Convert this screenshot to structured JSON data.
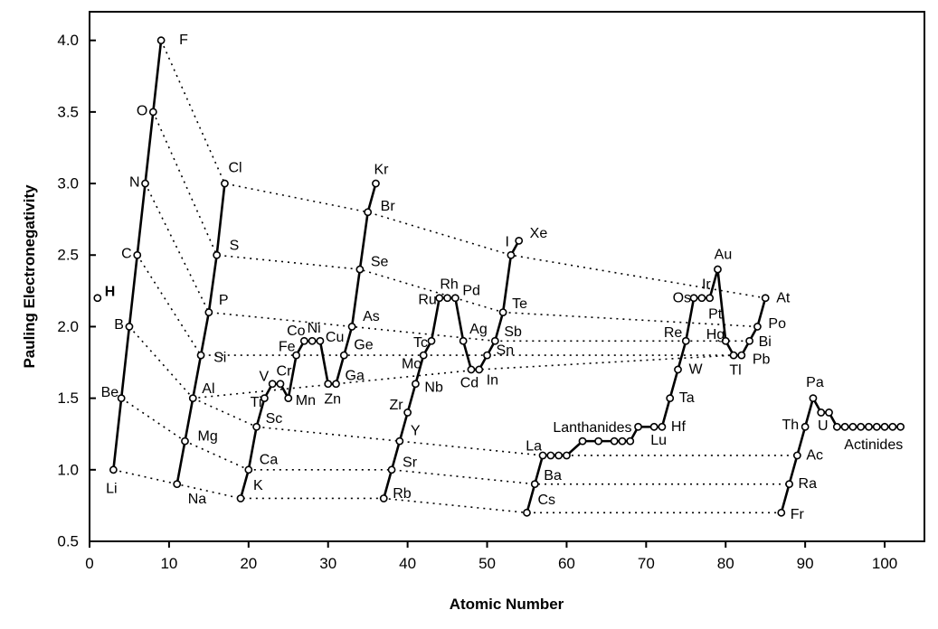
{
  "chart_data": {
    "type": "line",
    "xlabel": "Atomic Number",
    "ylabel": "Pauling Electronegativity",
    "xlim": [
      0,
      105
    ],
    "ylim": [
      0.5,
      4.2
    ],
    "xticks": [
      "0",
      "10",
      "20",
      "30",
      "40",
      "50",
      "60",
      "70",
      "80",
      "90",
      "100"
    ],
    "yticks": [
      "0.5",
      "1.0",
      "1.5",
      "2.0",
      "2.5",
      "3.0",
      "3.5",
      "4.0"
    ],
    "grid": false,
    "annotations": {
      "lanthanides": "Lanthanides",
      "actinides": "Actinides"
    },
    "elements": [
      {
        "z": 1,
        "en": 2.2,
        "symbol": "H",
        "bold": true
      },
      {
        "z": 3,
        "en": 1.0,
        "symbol": "Li"
      },
      {
        "z": 4,
        "en": 1.5,
        "symbol": "Be"
      },
      {
        "z": 5,
        "en": 2.0,
        "symbol": "B"
      },
      {
        "z": 6,
        "en": 2.5,
        "symbol": "C"
      },
      {
        "z": 7,
        "en": 3.0,
        "symbol": "N"
      },
      {
        "z": 8,
        "en": 3.5,
        "symbol": "O"
      },
      {
        "z": 9,
        "en": 4.0,
        "symbol": "F"
      },
      {
        "z": 11,
        "en": 0.9,
        "symbol": "Na"
      },
      {
        "z": 12,
        "en": 1.2,
        "symbol": "Mg"
      },
      {
        "z": 13,
        "en": 1.5,
        "symbol": "Al"
      },
      {
        "z": 14,
        "en": 1.8,
        "symbol": "Si"
      },
      {
        "z": 15,
        "en": 2.1,
        "symbol": "P"
      },
      {
        "z": 16,
        "en": 2.5,
        "symbol": "S"
      },
      {
        "z": 17,
        "en": 3.0,
        "symbol": "Cl"
      },
      {
        "z": 19,
        "en": 0.8,
        "symbol": "K"
      },
      {
        "z": 20,
        "en": 1.0,
        "symbol": "Ca"
      },
      {
        "z": 21,
        "en": 1.3,
        "symbol": "Sc"
      },
      {
        "z": 22,
        "en": 1.5,
        "symbol": "Ti"
      },
      {
        "z": 23,
        "en": 1.6,
        "symbol": "V"
      },
      {
        "z": 24,
        "en": 1.6,
        "symbol": "Cr"
      },
      {
        "z": 25,
        "en": 1.5,
        "symbol": "Mn"
      },
      {
        "z": 26,
        "en": 1.8,
        "symbol": "Fe"
      },
      {
        "z": 27,
        "en": 1.9,
        "symbol": "Co"
      },
      {
        "z": 28,
        "en": 1.9,
        "symbol": "Ni"
      },
      {
        "z": 29,
        "en": 1.9,
        "symbol": "Cu"
      },
      {
        "z": 30,
        "en": 1.6,
        "symbol": "Zn"
      },
      {
        "z": 31,
        "en": 1.6,
        "symbol": "Ga"
      },
      {
        "z": 32,
        "en": 1.8,
        "symbol": "Ge"
      },
      {
        "z": 33,
        "en": 2.0,
        "symbol": "As"
      },
      {
        "z": 34,
        "en": 2.4,
        "symbol": "Se"
      },
      {
        "z": 35,
        "en": 2.8,
        "symbol": "Br"
      },
      {
        "z": 36,
        "en": 3.0,
        "symbol": "Kr"
      },
      {
        "z": 37,
        "en": 0.8,
        "symbol": "Rb"
      },
      {
        "z": 38,
        "en": 1.0,
        "symbol": "Sr"
      },
      {
        "z": 39,
        "en": 1.2,
        "symbol": "Y"
      },
      {
        "z": 40,
        "en": 1.4,
        "symbol": "Zr"
      },
      {
        "z": 41,
        "en": 1.6,
        "symbol": "Nb"
      },
      {
        "z": 42,
        "en": 1.8,
        "symbol": "Mo"
      },
      {
        "z": 43,
        "en": 1.9,
        "symbol": "Tc"
      },
      {
        "z": 44,
        "en": 2.2,
        "symbol": "Ru"
      },
      {
        "z": 45,
        "en": 2.2,
        "symbol": "Rh"
      },
      {
        "z": 46,
        "en": 2.2,
        "symbol": "Pd"
      },
      {
        "z": 47,
        "en": 1.9,
        "symbol": "Ag"
      },
      {
        "z": 48,
        "en": 1.7,
        "symbol": "Cd"
      },
      {
        "z": 49,
        "en": 1.7,
        "symbol": "In"
      },
      {
        "z": 50,
        "en": 1.8,
        "symbol": "Sn"
      },
      {
        "z": 51,
        "en": 1.9,
        "symbol": "Sb"
      },
      {
        "z": 52,
        "en": 2.1,
        "symbol": "Te"
      },
      {
        "z": 53,
        "en": 2.5,
        "symbol": "I"
      },
      {
        "z": 54,
        "en": 2.6,
        "symbol": "Xe"
      },
      {
        "z": 55,
        "en": 0.7,
        "symbol": "Cs"
      },
      {
        "z": 56,
        "en": 0.9,
        "symbol": "Ba"
      },
      {
        "z": 57,
        "en": 1.1,
        "symbol": "La"
      },
      {
        "z": 58,
        "en": 1.1
      },
      {
        "z": 59,
        "en": 1.1
      },
      {
        "z": 60,
        "en": 1.1
      },
      {
        "z": 62,
        "en": 1.2
      },
      {
        "z": 64,
        "en": 1.2
      },
      {
        "z": 66,
        "en": 1.2
      },
      {
        "z": 67,
        "en": 1.2
      },
      {
        "z": 68,
        "en": 1.2
      },
      {
        "z": 69,
        "en": 1.3
      },
      {
        "z": 71,
        "en": 1.3,
        "symbol": "Lu"
      },
      {
        "z": 72,
        "en": 1.3,
        "symbol": "Hf"
      },
      {
        "z": 73,
        "en": 1.5,
        "symbol": "Ta"
      },
      {
        "z": 74,
        "en": 1.7,
        "symbol": "W"
      },
      {
        "z": 75,
        "en": 1.9,
        "symbol": "Re"
      },
      {
        "z": 76,
        "en": 2.2,
        "symbol": "Os"
      },
      {
        "z": 77,
        "en": 2.2,
        "symbol": "Ir"
      },
      {
        "z": 78,
        "en": 2.2,
        "symbol": "Pt"
      },
      {
        "z": 79,
        "en": 2.4,
        "symbol": "Au"
      },
      {
        "z": 80,
        "en": 1.9,
        "symbol": "Hg"
      },
      {
        "z": 81,
        "en": 1.8,
        "symbol": "Tl"
      },
      {
        "z": 82,
        "en": 1.8,
        "symbol": "Pb"
      },
      {
        "z": 83,
        "en": 1.9,
        "symbol": "Bi"
      },
      {
        "z": 84,
        "en": 2.0,
        "symbol": "Po"
      },
      {
        "z": 85,
        "en": 2.2,
        "symbol": "At"
      },
      {
        "z": 87,
        "en": 0.7,
        "symbol": "Fr"
      },
      {
        "z": 88,
        "en": 0.9,
        "symbol": "Ra"
      },
      {
        "z": 89,
        "en": 1.1,
        "symbol": "Ac"
      },
      {
        "z": 90,
        "en": 1.3,
        "symbol": "Th"
      },
      {
        "z": 91,
        "en": 1.5,
        "symbol": "Pa"
      },
      {
        "z": 92,
        "en": 1.4,
        "symbol": "U"
      },
      {
        "z": 93,
        "en": 1.4
      },
      {
        "z": 94,
        "en": 1.3
      },
      {
        "z": 95,
        "en": 1.3
      },
      {
        "z": 96,
        "en": 1.3
      },
      {
        "z": 97,
        "en": 1.3
      },
      {
        "z": 98,
        "en": 1.3
      },
      {
        "z": 99,
        "en": 1.3
      },
      {
        "z": 100,
        "en": 1.3
      },
      {
        "z": 101,
        "en": 1.3
      },
      {
        "z": 102,
        "en": 1.3
      }
    ],
    "periods": [
      [
        3,
        4,
        5,
        6,
        7,
        8,
        9
      ],
      [
        11,
        12,
        13,
        14,
        15,
        16,
        17
      ],
      [
        19,
        20,
        21,
        22,
        23,
        24,
        25,
        26,
        27,
        28,
        29,
        30,
        31,
        32,
        33,
        34,
        35,
        36
      ],
      [
        37,
        38,
        39,
        40,
        41,
        42,
        43,
        44,
        45,
        46,
        47,
        48,
        49,
        50,
        51,
        52,
        53,
        54
      ],
      [
        55,
        56,
        57,
        58,
        59,
        60,
        62,
        64,
        66,
        67,
        68,
        69,
        71,
        72,
        73,
        74,
        75,
        76,
        77,
        78,
        79,
        80,
        81,
        82,
        83,
        84,
        85
      ],
      [
        87,
        88,
        89,
        90,
        91,
        92,
        93,
        94,
        95,
        96,
        97,
        98,
        99,
        100,
        101,
        102
      ]
    ],
    "groups": [
      [
        3,
        11,
        19,
        37,
        55,
        87
      ],
      [
        4,
        12,
        20,
        38,
        56,
        88
      ],
      [
        13,
        21,
        39,
        57,
        89
      ],
      [
        5,
        13,
        31,
        49,
        81
      ],
      [
        6,
        14,
        32,
        50,
        82
      ],
      [
        7,
        15,
        33,
        51,
        83
      ],
      [
        8,
        16,
        34,
        52,
        84
      ],
      [
        9,
        17,
        35,
        53,
        85
      ]
    ]
  }
}
